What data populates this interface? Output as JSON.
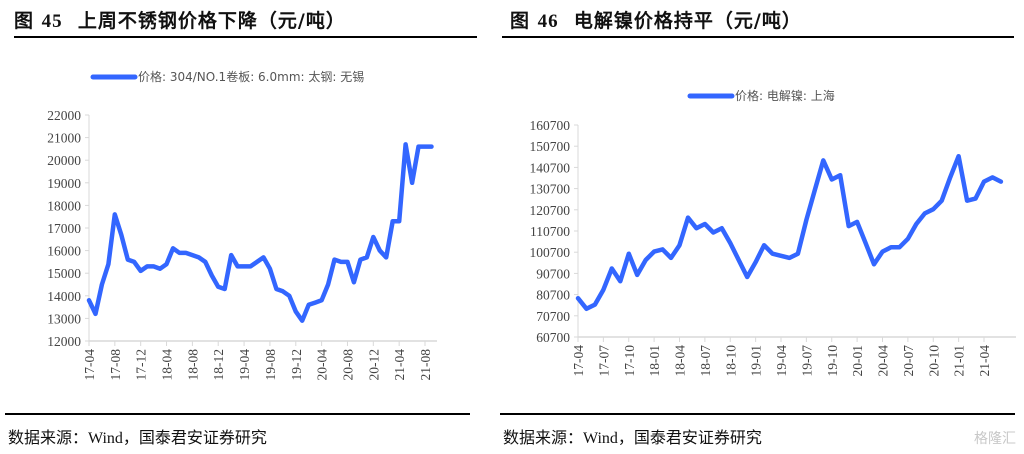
{
  "charts": [
    {
      "title_prefix": "图",
      "title_num": "45",
      "title_text": "上周不锈钢价格下降（元/吨）",
      "legend": "价格: 304/NO.1卷板: 6.0mm: 太钢: 无锡",
      "source": "数据来源：Wind，国泰君安证券研究"
    },
    {
      "title_prefix": "图",
      "title_num": "46",
      "title_text": "电解镍价格持平（元/吨）",
      "legend": "价格: 电解镍: 上海",
      "source": "数据来源：Wind，国泰君安证券研究"
    }
  ],
  "watermark": "格隆汇",
  "chart_data": [
    {
      "type": "line",
      "title": "图45 上周不锈钢价格下降（元/吨）",
      "xlabel": "",
      "ylabel": "",
      "ylim": [
        12000,
        22000
      ],
      "yticks": [
        12000,
        13000,
        14000,
        15000,
        16000,
        17000,
        18000,
        19000,
        20000,
        21000,
        22000
      ],
      "xticks": [
        "17-04",
        "17-08",
        "17-12",
        "18-04",
        "18-08",
        "18-12",
        "19-04",
        "19-08",
        "19-12",
        "20-04",
        "20-08",
        "20-12",
        "21-04",
        "21-08"
      ],
      "grid": false,
      "legend_position": "top",
      "color": "#3366ff",
      "series": [
        {
          "name": "价格: 304/NO.1卷板: 6.0mm: 太钢: 无锡",
          "x": [
            "17-04",
            "17-05",
            "17-06",
            "17-07",
            "17-08",
            "17-09",
            "17-10",
            "17-11",
            "17-12",
            "18-01",
            "18-02",
            "18-03",
            "18-04",
            "18-05",
            "18-06",
            "18-07",
            "18-08",
            "18-09",
            "18-10",
            "18-11",
            "18-12",
            "19-01",
            "19-02",
            "19-03",
            "19-04",
            "19-05",
            "19-06",
            "19-07",
            "19-08",
            "19-09",
            "19-10",
            "19-11",
            "19-12",
            "20-01",
            "20-02",
            "20-03",
            "20-04",
            "20-05",
            "20-06",
            "20-07",
            "20-08",
            "20-09",
            "20-10",
            "20-11",
            "20-12",
            "21-01",
            "21-02",
            "21-03",
            "21-04",
            "21-05",
            "21-06",
            "21-07",
            "21-08",
            "21-09"
          ],
          "values": [
            13800,
            13200,
            14500,
            15400,
            17600,
            16700,
            15600,
            15500,
            15100,
            15300,
            15300,
            15200,
            15400,
            16100,
            15900,
            15900,
            15800,
            15700,
            15500,
            14900,
            14400,
            14300,
            15800,
            15300,
            15300,
            15300,
            15500,
            15700,
            15200,
            14300,
            14200,
            14000,
            13300,
            12900,
            13600,
            13700,
            13800,
            14500,
            15600,
            15500,
            15500,
            14600,
            15600,
            15700,
            16600,
            16000,
            15700,
            17300,
            17300,
            20700,
            19000,
            20600,
            20600,
            20600
          ]
        }
      ]
    },
    {
      "type": "line",
      "title": "图46 电解镍价格持平（元/吨）",
      "xlabel": "",
      "ylabel": "",
      "ylim": [
        60700,
        160700
      ],
      "yticks": [
        60700,
        70700,
        80700,
        90700,
        100700,
        110700,
        120700,
        130700,
        140700,
        150700,
        160700
      ],
      "xticks": [
        "17-04",
        "17-07",
        "17-10",
        "18-01",
        "18-04",
        "18-07",
        "18-10",
        "19-01",
        "19-04",
        "19-07",
        "19-10",
        "20-01",
        "20-04",
        "20-07",
        "20-10",
        "21-01",
        "21-04"
      ],
      "grid": false,
      "legend_position": "top",
      "color": "#3366ff",
      "series": [
        {
          "name": "价格: 电解镍: 上海",
          "x": [
            "17-04",
            "17-05",
            "17-06",
            "17-07",
            "17-08",
            "17-09",
            "17-10",
            "17-11",
            "17-12",
            "18-01",
            "18-02",
            "18-03",
            "18-04",
            "18-05",
            "18-06",
            "18-07",
            "18-08",
            "18-09",
            "18-10",
            "18-11",
            "18-12",
            "19-01",
            "19-02",
            "19-03",
            "19-04",
            "19-05",
            "19-06",
            "19-07",
            "19-08",
            "19-09",
            "19-10",
            "19-11",
            "19-12",
            "20-01",
            "20-02",
            "20-03",
            "20-04",
            "20-05",
            "20-06",
            "20-07",
            "20-08",
            "20-09",
            "20-10",
            "20-11",
            "20-12",
            "21-01",
            "21-02",
            "21-03",
            "21-04",
            "21-05",
            "21-06"
          ],
          "values": [
            79000,
            74000,
            76000,
            83000,
            93000,
            87000,
            100000,
            90000,
            97000,
            101000,
            102000,
            98000,
            104000,
            117000,
            112000,
            114000,
            110000,
            112000,
            105000,
            97000,
            89000,
            96000,
            104000,
            100000,
            99000,
            98000,
            100000,
            116000,
            130000,
            144000,
            135000,
            137000,
            113000,
            115000,
            105000,
            95000,
            101000,
            103000,
            103000,
            107000,
            114000,
            119000,
            121000,
            125000,
            136000,
            146000,
            125000,
            126000,
            134000,
            136000,
            134000
          ]
        }
      ]
    }
  ]
}
